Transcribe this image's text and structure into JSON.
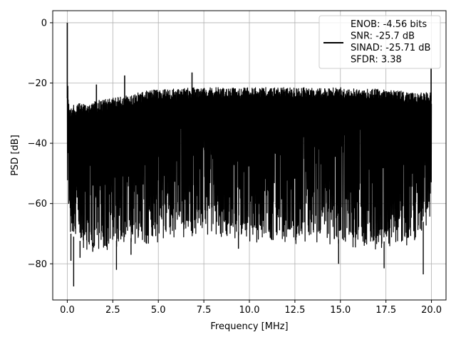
{
  "chart_data": {
    "type": "line",
    "xlabel": "Frequency [MHz]",
    "ylabel": "PSD [dB]",
    "xlim": [
      -0.8,
      20.8
    ],
    "ylim": [
      -92,
      4
    ],
    "xticks": [
      0.0,
      2.5,
      5.0,
      7.5,
      10.0,
      12.5,
      15.0,
      17.5,
      20.0
    ],
    "xtick_labels": [
      "0.0",
      "2.5",
      "5.0",
      "7.5",
      "10.0",
      "12.5",
      "15.0",
      "17.5",
      "20.0"
    ],
    "yticks": [
      0,
      -20,
      -40,
      -60,
      -80
    ],
    "ytick_labels": [
      "0",
      "−20",
      "−40",
      "−60",
      "−80"
    ],
    "grid": true,
    "legend_position": "top-right",
    "line_color": "#000000",
    "series": [
      {
        "name": "ENOB: -4.56 bits\nSNR: -25.7 dB\nSINAD: -25.71 dB\nSFDR: 3.38",
        "legend_lines": [
          "ENOB: -4.56 bits",
          "SNR: -25.7 dB",
          "SINAD: -25.71 dB",
          "SFDR: 3.38"
        ],
        "upper_envelope": {
          "x": [
            0.0,
            0.03,
            0.1,
            0.3,
            0.5,
            1.0,
            1.5,
            2.0,
            2.5,
            3.0,
            3.5,
            4.0,
            5.0,
            6.0,
            7.0,
            8.0,
            9.0,
            10.0,
            11.0,
            12.0,
            13.0,
            14.0,
            15.0,
            16.0,
            17.0,
            18.0,
            19.0,
            19.9
          ],
          "y": [
            -22,
            -20,
            -28,
            -27.5,
            -27,
            -26.5,
            -26,
            -25.5,
            -25,
            -24.5,
            -24,
            -23,
            -22,
            -22,
            -21.5,
            -21.5,
            -21.5,
            -21.5,
            -21.5,
            -21.5,
            -21.5,
            -21.5,
            -21.5,
            -22,
            -22,
            -22.5,
            -23,
            -23
          ]
        },
        "lower_envelope": {
          "x": [
            0.0,
            0.05,
            0.2,
            0.5,
            1.0,
            2.0,
            3.0,
            4.0,
            5.0,
            6.0,
            7.0,
            8.0,
            9.0,
            10.0,
            11.0,
            12.0,
            13.0,
            14.0,
            15.0,
            16.0,
            17.0,
            18.0,
            19.0,
            20.0
          ],
          "y": [
            -55,
            -60,
            -70,
            -72,
            -73,
            -73,
            -72,
            -71,
            -70,
            -69,
            -68,
            -68,
            -69,
            -70,
            -70,
            -70,
            -71,
            -71,
            -72,
            -72,
            -73,
            -72,
            -71,
            -62
          ]
        },
        "peaks": [
          {
            "x": 0.0,
            "y": 0.0
          },
          {
            "x": 1.6,
            "y": -20.5
          },
          {
            "x": 3.15,
            "y": -17.5
          },
          {
            "x": 6.85,
            "y": -16.5
          },
          {
            "x": 19.98,
            "y": -15.0
          }
        ],
        "dips": [
          {
            "x": 0.2,
            "y": -79
          },
          {
            "x": 0.35,
            "y": -87.5
          },
          {
            "x": 0.7,
            "y": -78
          },
          {
            "x": 1.4,
            "y": -76
          },
          {
            "x": 2.7,
            "y": -82
          },
          {
            "x": 3.5,
            "y": -77
          },
          {
            "x": 9.4,
            "y": -75
          },
          {
            "x": 14.9,
            "y": -80
          },
          {
            "x": 17.4,
            "y": -81.5
          },
          {
            "x": 19.55,
            "y": -83.5
          }
        ]
      }
    ]
  }
}
